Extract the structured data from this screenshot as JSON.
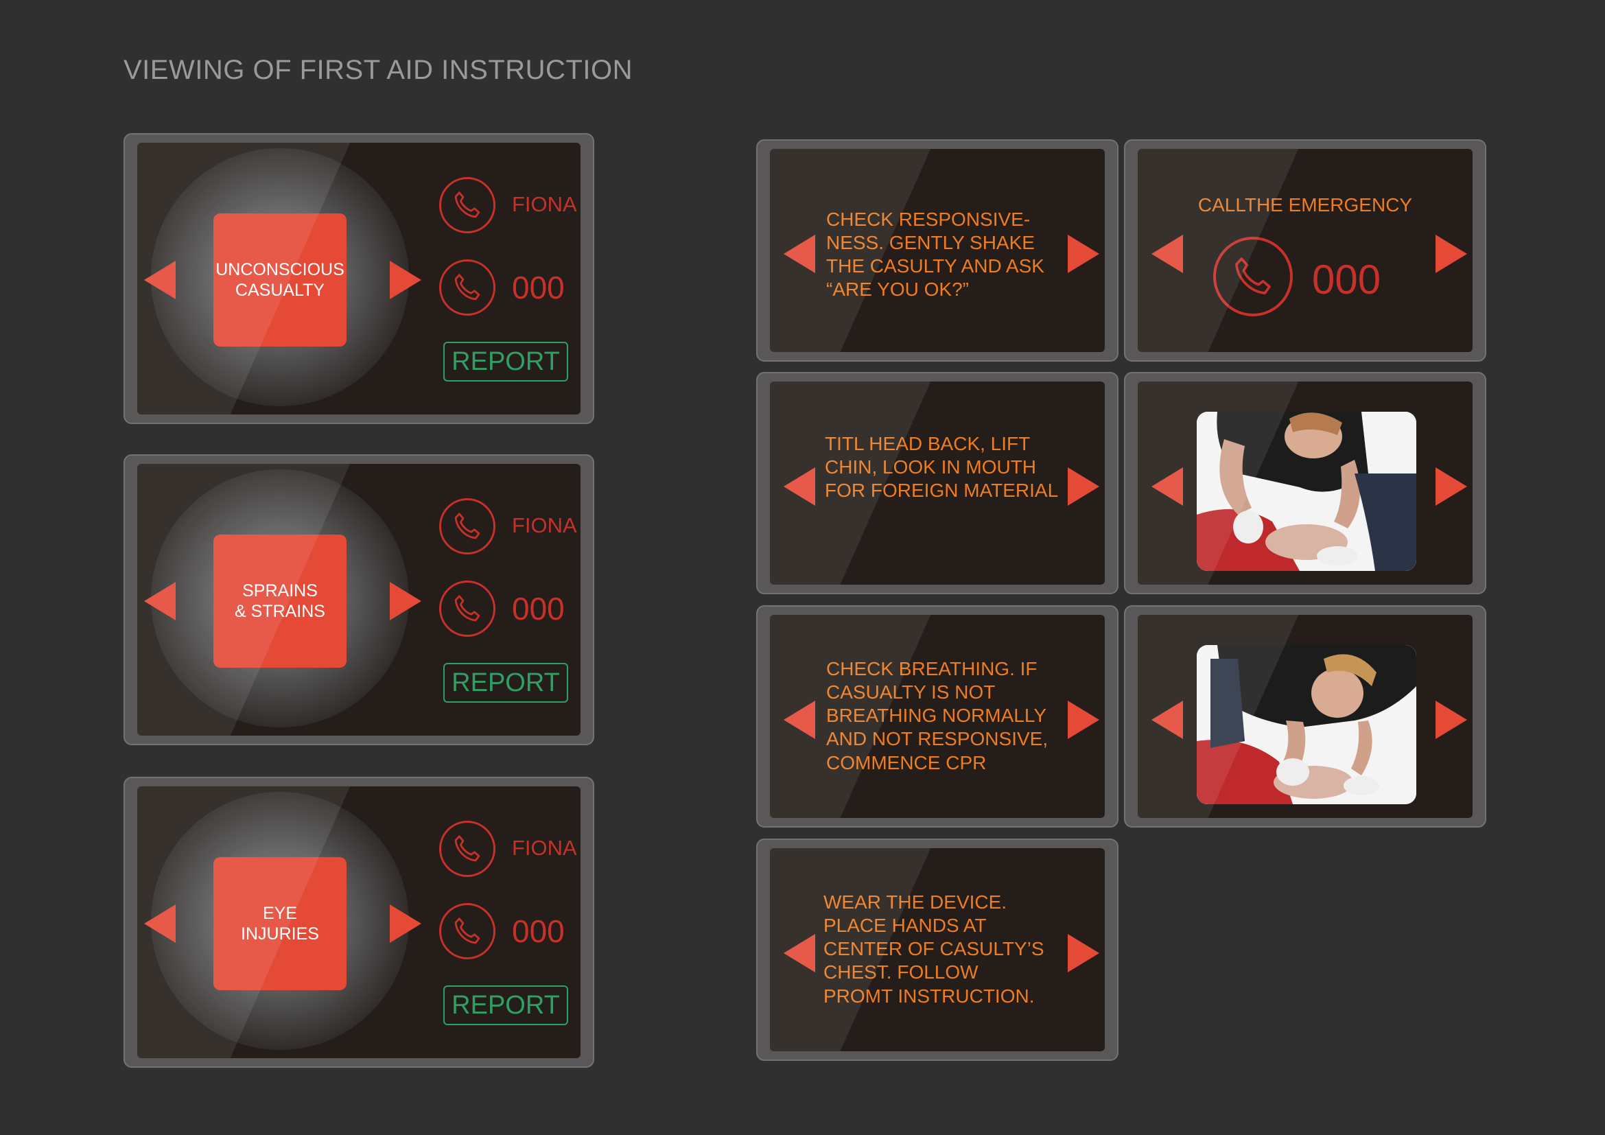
{
  "page": {
    "title": "VIEWING OF FIRST AID INSTRUCTION"
  },
  "categories": [
    {
      "label": "UNCONSCIOUS\nCASUALTY",
      "contact_name": "FIONA",
      "emergency_number": "000",
      "report_label": "REPORT"
    },
    {
      "label": "SPRAINS\n& STRAINS",
      "contact_name": "FIONA",
      "emergency_number": "000",
      "report_label": "REPORT"
    },
    {
      "label": "EYE\nINJURIES",
      "contact_name": "FIONA",
      "emergency_number": "000",
      "report_label": "REPORT"
    }
  ],
  "instructions": {
    "step1": "CHECK RESPONSIVE-\nNESS. GENTLY SHAKE\nTHE CASULTY AND ASK\n“ARE YOU OK?”",
    "emergency_title": "CALLTHE EMERGENCY",
    "emergency_number": "000",
    "step2": "TITL HEAD BACK, LIFT\nCHIN, LOOK IN MOUTH\nFOR FOREIGN MATERIAL",
    "step3": "CHECK BREATHING. IF\nCASUALTY IS NOT\nBREATHING NORMALLY\nAND NOT RESPONSIVE,\nCOMMENCE CPR",
    "step4": "WEAR THE DEVICE.\nPLACE HANDS AT\nCENTER OF CASULTY’S\nCHEST. FOLLOW\nPROMT INSTRUCTION."
  },
  "icons": {
    "arrow": "triangle-arrow-icon",
    "phone": "phone-icon",
    "photo": "first-aid-photo"
  },
  "colors": {
    "background": "#313031",
    "tile": "#e54a37",
    "phone_red": "#c8302a",
    "report_green": "#2da163",
    "instruction_orange": "#ef7d1f"
  }
}
